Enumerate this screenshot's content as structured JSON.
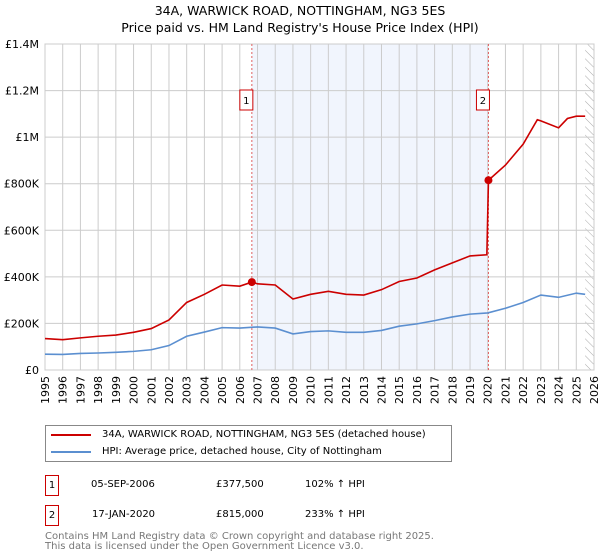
{
  "chart_data": {
    "type": "line",
    "title": "34A, WARWICK ROAD, NOTTINGHAM, NG3 5ES",
    "subtitle": "Price paid vs. HM Land Registry's House Price Index (HPI)",
    "xlim": [
      1995,
      2026
    ],
    "ylim": [
      0,
      1400000
    ],
    "x_ticks": [
      "1995",
      "1996",
      "1997",
      "1998",
      "1999",
      "2000",
      "2001",
      "2002",
      "2003",
      "2004",
      "2005",
      "2006",
      "2007",
      "2008",
      "2009",
      "2010",
      "2011",
      "2012",
      "2013",
      "2014",
      "2015",
      "2016",
      "2017",
      "2018",
      "2019",
      "2020",
      "2021",
      "2022",
      "2023",
      "2024",
      "2025",
      "2026"
    ],
    "y_ticks": [
      {
        "v": 0,
        "label": "£0"
      },
      {
        "v": 200000,
        "label": "£200K"
      },
      {
        "v": 400000,
        "label": "£400K"
      },
      {
        "v": 600000,
        "label": "£600K"
      },
      {
        "v": 800000,
        "label": "£800K"
      },
      {
        "v": 1000000,
        "label": "£1M"
      },
      {
        "v": 1200000,
        "label": "£1.2M"
      },
      {
        "v": 1400000,
        "label": "£1.4M"
      }
    ],
    "grid": true,
    "shaded_range": [
      2006.68,
      2020.04
    ],
    "hatched_from": 2025.5,
    "series": [
      {
        "name": "34A, WARWICK ROAD, NOTTINGHAM, NG3 5ES (detached house)",
        "color": "#cc0000",
        "x": [
          1995,
          1996,
          1997,
          1998,
          1999,
          2000,
          2001,
          2002,
          2003,
          2004,
          2005,
          2006,
          2006.68,
          2007,
          2008,
          2009,
          2010,
          2011,
          2012,
          2013,
          2014,
          2015,
          2016,
          2017,
          2018,
          2019,
          2019.95,
          2020.04,
          2021,
          2022,
          2022.8,
          2023,
          2024,
          2024.5,
          2025,
          2025.5
        ],
        "y": [
          135000,
          130000,
          138000,
          145000,
          150000,
          162000,
          178000,
          215000,
          290000,
          325000,
          365000,
          360000,
          377500,
          370000,
          365000,
          305000,
          325000,
          338000,
          325000,
          322000,
          345000,
          380000,
          395000,
          430000,
          460000,
          490000,
          495000,
          815000,
          880000,
          970000,
          1075000,
          1070000,
          1040000,
          1080000,
          1090000,
          1090000
        ]
      },
      {
        "name": "HPI: Average price, detached house, City of Nottingham",
        "color": "#5b8fd0",
        "x": [
          1995,
          1996,
          1997,
          1998,
          1999,
          2000,
          2001,
          2002,
          2003,
          2004,
          2005,
          2006,
          2007,
          2008,
          2009,
          2010,
          2011,
          2012,
          2013,
          2014,
          2015,
          2016,
          2017,
          2018,
          2019,
          2020,
          2021,
          2022,
          2023,
          2024,
          2025,
          2025.5
        ],
        "y": [
          68000,
          67000,
          71000,
          73000,
          76000,
          80000,
          87000,
          105000,
          145000,
          163000,
          182000,
          180000,
          185000,
          180000,
          155000,
          165000,
          168000,
          162000,
          162000,
          170000,
          188000,
          198000,
          212000,
          228000,
          240000,
          245000,
          265000,
          290000,
          322000,
          312000,
          330000,
          325000
        ]
      }
    ],
    "sales": [
      {
        "label": "1",
        "x": 2006.68,
        "y": 377500,
        "date": "05-SEP-2006",
        "price": "£377,500",
        "hpi": "102% ↑ HPI"
      },
      {
        "label": "2",
        "x": 2020.04,
        "y": 815000,
        "date": "17-JAN-2020",
        "price": "£815,000",
        "hpi": "233% ↑ HPI"
      }
    ],
    "legend_placement": "below"
  },
  "footer": [
    "Contains HM Land Registry data © Crown copyright and database right 2025.",
    "This data is licensed under the Open Government Licence v3.0."
  ]
}
